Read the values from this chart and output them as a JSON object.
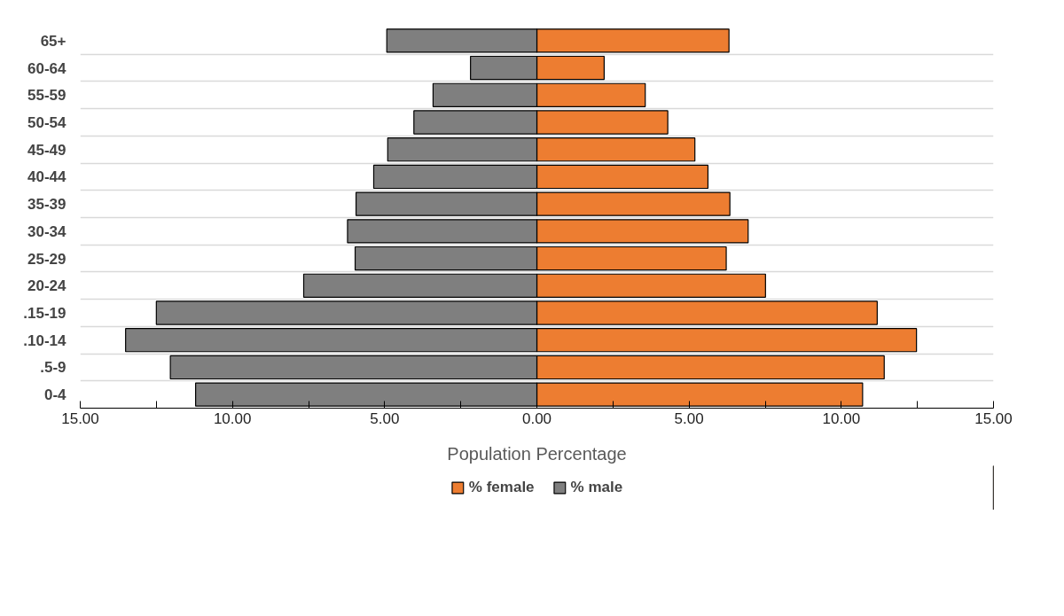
{
  "chart_data": {
    "type": "bar",
    "orientation": "horizontal",
    "xlabel": "Population Percentage",
    "categories": [
      "65+",
      "60-64",
      "55-59",
      "50-54",
      "45-49",
      "40-44",
      "35-39",
      "30-34",
      "25-29",
      "20-24",
      ".15-19",
      ".10-14",
      ".5-9",
      "0-4"
    ],
    "series": [
      {
        "name": "% female",
        "color": "#ed7d31",
        "values": [
          6.31,
          2.21,
          3.56,
          4.3,
          5.19,
          5.62,
          6.34,
          6.94,
          6.22,
          7.51,
          11.18,
          12.47,
          11.41,
          10.7
        ]
      },
      {
        "name": "% male",
        "color": "#7f7f7f",
        "values": [
          -4.93,
          -2.18,
          -3.41,
          -4.04,
          -4.9,
          -5.36,
          -5.94,
          -6.22,
          -5.97,
          -7.66,
          -12.5,
          -13.51,
          -12.04,
          -11.21
        ]
      }
    ],
    "xlim": [
      -15,
      15
    ],
    "xticks": [
      {
        "value": -15,
        "label": "15.00"
      },
      {
        "value": -12.5,
        "label": null
      },
      {
        "value": -10,
        "label": "10.00"
      },
      {
        "value": -7.5,
        "label": null
      },
      {
        "value": -5,
        "label": "5.00"
      },
      {
        "value": -2.5,
        "label": null
      },
      {
        "value": 0,
        "label": "0.00"
      },
      {
        "value": 2.5,
        "label": null
      },
      {
        "value": 5,
        "label": "5.00"
      },
      {
        "value": 7.5,
        "label": null
      },
      {
        "value": 10,
        "label": "10.00"
      },
      {
        "value": 12.5,
        "label": null
      },
      {
        "value": 15,
        "label": "15.00"
      }
    ],
    "stacked": true,
    "grid": "y",
    "legend": "bottom"
  }
}
